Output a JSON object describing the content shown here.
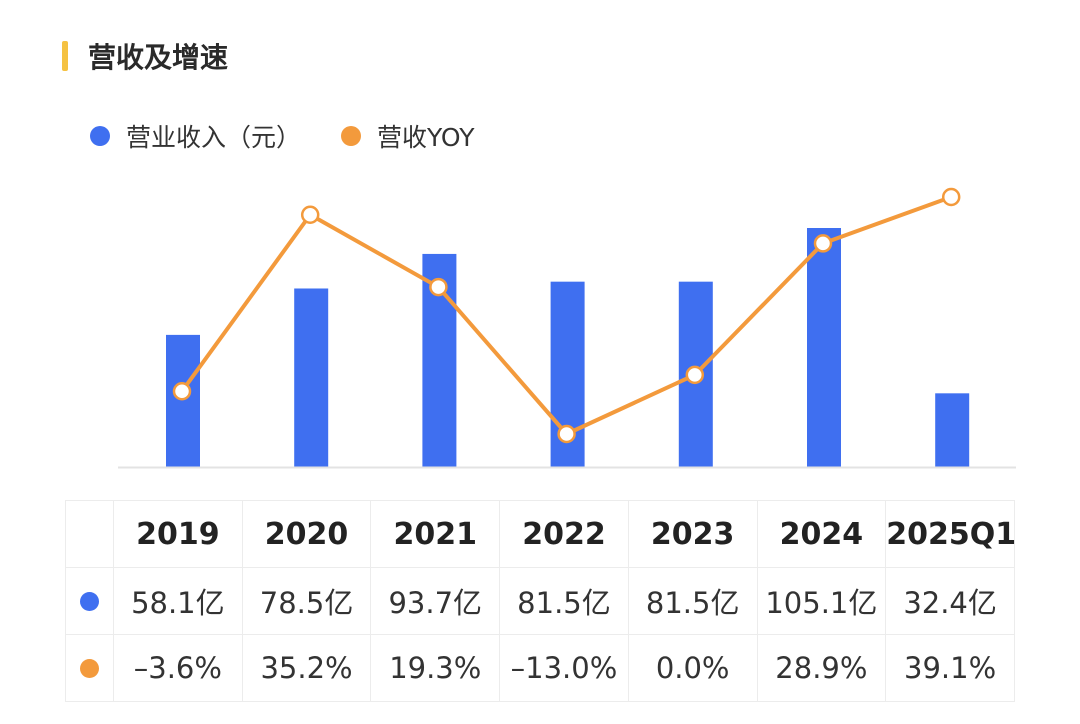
{
  "title": "营收及增速",
  "legend": {
    "revenue_label": "营业收入（元）",
    "yoy_label": "营收YOY"
  },
  "colors": {
    "bar": "#3F6FF0",
    "line": "#F39A3C",
    "accent": "#F5C242"
  },
  "chart_data": {
    "type": "bar+line",
    "title": "营收及增速",
    "categories": [
      "2019",
      "2020",
      "2021",
      "2022",
      "2023",
      "2024",
      "2025Q1"
    ],
    "series": [
      {
        "name": "营业收入（元）",
        "type": "bar",
        "unit": "亿",
        "values": [
          58.1,
          78.5,
          93.7,
          81.5,
          81.5,
          105.1,
          32.4
        ]
      },
      {
        "name": "营收YOY",
        "type": "line",
        "unit": "%",
        "values": [
          -3.6,
          35.2,
          19.3,
          -13.0,
          0.0,
          28.9,
          39.1
        ]
      }
    ],
    "bar_ylim": [
      0,
      105.1
    ],
    "line_ylim": [
      -13.0,
      39.1
    ],
    "grid": false,
    "legend_position": "top-left"
  },
  "table": {
    "years": [
      "2019",
      "2020",
      "2021",
      "2022",
      "2023",
      "2024",
      "2025Q1"
    ],
    "revenue": [
      "58.1亿",
      "78.5亿",
      "93.7亿",
      "81.5亿",
      "81.5亿",
      "105.1亿",
      "32.4亿"
    ],
    "yoy": [
      "–3.6%",
      "35.2%",
      "19.3%",
      "–13.0%",
      "0.0%",
      "28.9%",
      "39.1%"
    ]
  }
}
